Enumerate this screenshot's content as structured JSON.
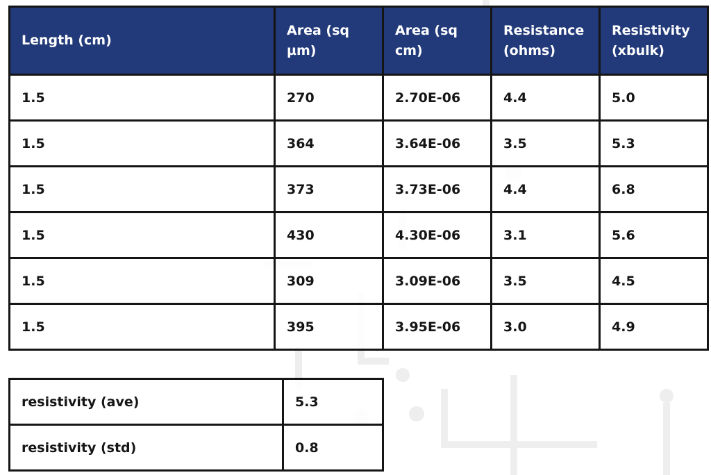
{
  "table": {
    "headers": [
      "Length (cm)",
      "Area (sq µm)",
      "Area (sq cm)",
      "Resistance (ohms)",
      "Resistivity (xbulk)"
    ],
    "rows": [
      [
        "1.5",
        "270",
        "2.70E-06",
        "4.4",
        "5.0"
      ],
      [
        "1.5",
        "364",
        "3.64E-06",
        "3.5",
        "5.3"
      ],
      [
        "1.5",
        "373",
        "3.73E-06",
        "4.4",
        "6.8"
      ],
      [
        "1.5",
        "430",
        "4.30E-06",
        "3.1",
        "5.6"
      ],
      [
        "1.5",
        "309",
        "3.09E-06",
        "3.5",
        "4.5"
      ],
      [
        "1.5",
        "395",
        "3.95E-06",
        "3.0",
        "4.9"
      ]
    ]
  },
  "summary": {
    "rows": [
      [
        "resistivity (ave)",
        "5.3"
      ],
      [
        "resistivity (std)",
        "0.8"
      ]
    ]
  },
  "colors": {
    "header_bg": "#233a7a",
    "header_text": "#ffffff",
    "border": "#151515"
  }
}
